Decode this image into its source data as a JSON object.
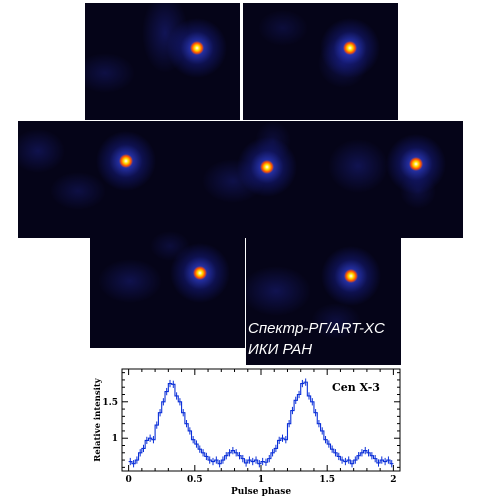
{
  "images": {
    "panels": [
      {
        "name": "phase-frame-1",
        "phase": 1
      },
      {
        "name": "phase-frame-2",
        "phase": 2
      },
      {
        "name": "phase-frame-3",
        "phase": 3
      },
      {
        "name": "phase-frame-4",
        "phase": 4
      },
      {
        "name": "phase-frame-5",
        "phase": 5
      },
      {
        "name": "phase-frame-6",
        "phase": 6
      },
      {
        "name": "phase-frame-7",
        "phase": 7
      }
    ],
    "colormap": [
      "#050418",
      "#10106a",
      "#2a30d8",
      "#ff2a00",
      "#ffd400",
      "#ffffff"
    ]
  },
  "watermark": {
    "line1": "Спектр-РГ/ART-XC",
    "line2": "ИКИ РАН"
  },
  "chart_data": {
    "type": "line",
    "style": "step-with-errorbars",
    "source_label": "Cen X-3",
    "xlabel": "Pulse phase",
    "ylabel": "Relative intensity",
    "xlim": [
      -0.05,
      2.05
    ],
    "ylim": [
      0.55,
      1.95
    ],
    "xticks": [
      0,
      0.5,
      1,
      1.5,
      2
    ],
    "xtick_labels": [
      "0",
      "0.5",
      "1",
      "1.5",
      "2"
    ],
    "yticks": [
      1,
      1.5
    ],
    "ytick_labels": [
      "1",
      "1.5"
    ],
    "color": "#0a2fd8",
    "x": [
      0.0125,
      0.0375,
      0.0625,
      0.0875,
      0.1125,
      0.1375,
      0.1625,
      0.1875,
      0.2125,
      0.2375,
      0.2625,
      0.2875,
      0.3125,
      0.3375,
      0.3625,
      0.3875,
      0.4125,
      0.4375,
      0.4625,
      0.4875,
      0.5125,
      0.5375,
      0.5625,
      0.5875,
      0.6125,
      0.6375,
      0.6625,
      0.6875,
      0.7125,
      0.7375,
      0.7625,
      0.7875,
      0.8125,
      0.8375,
      0.8625,
      0.8875,
      0.9125,
      0.9375,
      0.9625,
      0.9875,
      1.0125,
      1.0375,
      1.0625,
      1.0875,
      1.1125,
      1.1375,
      1.1625,
      1.1875,
      1.2125,
      1.2375,
      1.2625,
      1.2875,
      1.3125,
      1.3375,
      1.3625,
      1.3875,
      1.4125,
      1.4375,
      1.4625,
      1.4875,
      1.5125,
      1.5375,
      1.5625,
      1.5875,
      1.6125,
      1.6375,
      1.6625,
      1.6875,
      1.7125,
      1.7375,
      1.7625,
      1.7875,
      1.8125,
      1.8375,
      1.8625,
      1.8875,
      1.9125,
      1.9375,
      1.9625,
      1.9875
    ],
    "values": [
      0.68,
      0.65,
      0.7,
      0.8,
      0.86,
      0.97,
      1.0,
      0.98,
      1.18,
      1.35,
      1.5,
      1.64,
      1.75,
      1.74,
      1.58,
      1.5,
      1.35,
      1.2,
      1.1,
      0.98,
      0.92,
      0.85,
      0.8,
      0.75,
      0.7,
      0.68,
      0.7,
      0.65,
      0.7,
      0.76,
      0.8,
      0.83,
      0.8,
      0.76,
      0.72,
      0.66,
      0.7,
      0.68,
      0.7,
      0.65,
      0.68,
      0.67,
      0.72,
      0.8,
      0.86,
      0.97,
      1.0,
      0.98,
      1.2,
      1.38,
      1.52,
      1.6,
      1.75,
      1.77,
      1.58,
      1.5,
      1.35,
      1.2,
      1.1,
      0.98,
      0.92,
      0.85,
      0.8,
      0.75,
      0.7,
      0.68,
      0.7,
      0.65,
      0.7,
      0.76,
      0.8,
      0.83,
      0.8,
      0.76,
      0.72,
      0.66,
      0.7,
      0.68,
      0.7,
      0.65
    ],
    "error": 0.05
  }
}
